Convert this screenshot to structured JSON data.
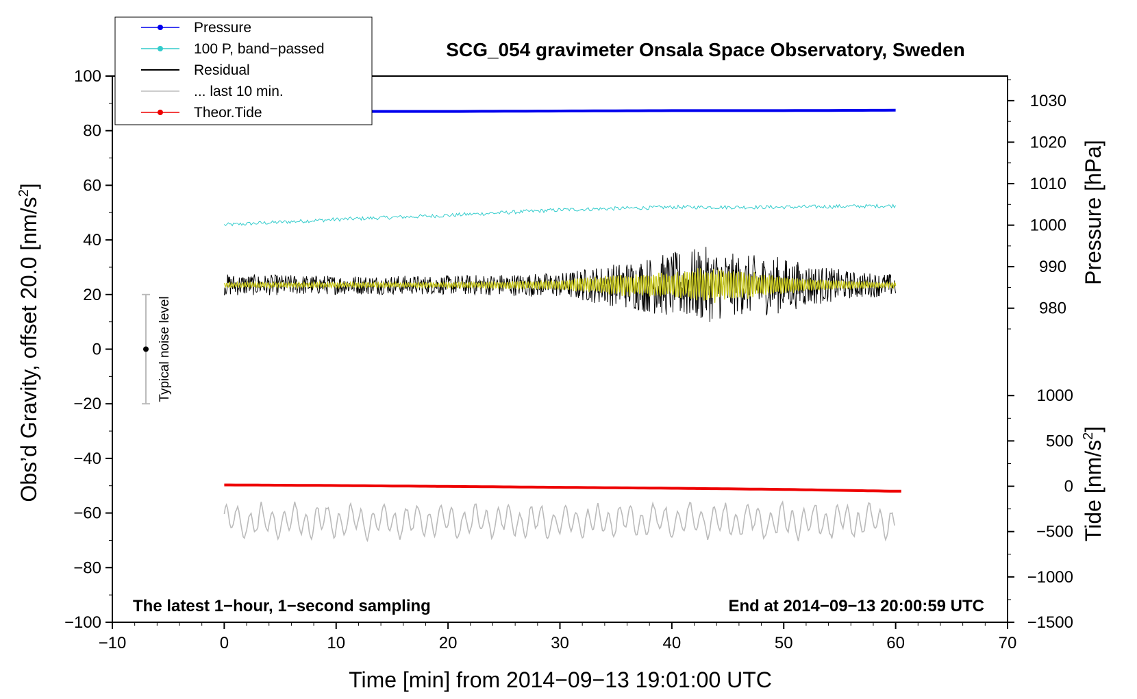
{
  "chart_data": {
    "type": "line",
    "title": "SCG_054 gravimeter Onsala Space Observatory, Sweden",
    "xlabel": "Time [min] from 2014−09−13 19:01:00 UTC",
    "ylabel_main": "Obs’d Gravity, offset 20.0 [nm/s",
    "ylabel_main_sup": "2",
    "ylabel_main_tail": "]",
    "ylabel_pressure": "Pressure [hPa]",
    "ylabel_tide": "Tide [nm/s",
    "ylabel_tide_sup": "2",
    "ylabel_tide_tail": "]",
    "xlim": [
      -10,
      70
    ],
    "ylim": [
      -100,
      100
    ],
    "x_ticks": [
      -10,
      0,
      10,
      20,
      30,
      40,
      50,
      60,
      70
    ],
    "x_tick_labels": [
      "−10",
      "0",
      "10",
      "20",
      "30",
      "40",
      "50",
      "60",
      "70"
    ],
    "y_ticks": [
      100,
      80,
      60,
      40,
      20,
      0,
      -20,
      -40,
      -60,
      -80,
      -100
    ],
    "y_tick_labels": [
      "100",
      "80",
      "60",
      "40",
      "20",
      "0",
      "−20",
      "−40",
      "−60",
      "−80",
      "−100"
    ],
    "pressure_ticks": [
      1030,
      1020,
      1010,
      1000,
      990,
      980
    ],
    "pressure_tick_labels": [
      "1030",
      "1020",
      "1010",
      "1000",
      "990",
      "980"
    ],
    "pressure_axis_map": {
      "p1": 1030,
      "y1": 91,
      "p2": 980,
      "y2": 15
    },
    "tide_ticks": [
      1000,
      500,
      0,
      -500,
      -1000,
      -1500
    ],
    "tide_tick_labels": [
      "1000",
      "500",
      "0",
      "−500",
      "−1000",
      "−1500"
    ],
    "tide_axis_map": {
      "t1": 1000,
      "y1": -17,
      "t2": -1500,
      "y2": -100
    },
    "legend": [
      {
        "label": "Pressure",
        "color": "#0000ee",
        "marker": true
      },
      {
        "label": "100 P, band−passed",
        "color": "#33cccc",
        "marker": true
      },
      {
        "label": "Residual",
        "color": "#000000",
        "marker": false
      },
      {
        "label": "... last 10 min.",
        "color": "#bbbbbb",
        "marker": false
      },
      {
        "label": "Theor.Tide",
        "color": "#ee0000",
        "marker": true
      }
    ],
    "annotations": {
      "left_bottom": "The latest 1−hour, 1−second sampling",
      "right_bottom": "End at 2014−09−13 20:00:59 UTC",
      "noise_label": "Typical noise level"
    },
    "noise_bar": {
      "x": -7,
      "center": 0,
      "low": -20,
      "high": 20
    },
    "series": [
      {
        "name": "Pressure",
        "color": "#0000ee",
        "axis": "pressure",
        "x": [
          0,
          10,
          20,
          30,
          40,
          50,
          60
        ],
        "values": [
          1027.3,
          1027.4,
          1027.4,
          1027.5,
          1027.6,
          1027.6,
          1027.7
        ]
      },
      {
        "name": "100 P, band−passed",
        "color": "#33cccc",
        "axis": "main",
        "x": [
          0,
          5,
          10,
          20,
          30,
          40,
          50,
          60
        ],
        "values": [
          45.5,
          46.5,
          47.5,
          49,
          51,
          52,
          52,
          52.5
        ]
      },
      {
        "name": "Residual",
        "color": "#000000",
        "axis": "main",
        "x": [
          0,
          10,
          20,
          30,
          35,
          40,
          43,
          46,
          49,
          52,
          56,
          60
        ],
        "envelope": [
          4,
          3.5,
          3.5,
          4.5,
          8,
          12,
          14,
          11,
          11,
          8,
          5,
          4
        ],
        "center": 23.5
      },
      {
        "name": "Residual (smoothed)",
        "color": "#cccc22",
        "axis": "main",
        "x": [
          0,
          10,
          20,
          30,
          35,
          40,
          43,
          46,
          49,
          52,
          56,
          60
        ],
        "envelope": [
          1,
          1,
          1,
          1.8,
          4,
          5,
          7,
          5.5,
          4,
          2.5,
          1.5,
          1
        ],
        "center": 23.5
      },
      {
        "name": "... last 10 min.",
        "color": "#bbbbbb",
        "axis": "main",
        "x": [
          0,
          60
        ],
        "center": -63,
        "amplitude": 6
      },
      {
        "name": "Theor.Tide",
        "color": "#ee0000",
        "axis": "tide",
        "x": [
          0,
          10,
          20,
          30,
          40,
          50,
          60
        ],
        "values": [
          15,
          8,
          -2,
          -12,
          -22,
          -35,
          -55
        ]
      }
    ]
  }
}
